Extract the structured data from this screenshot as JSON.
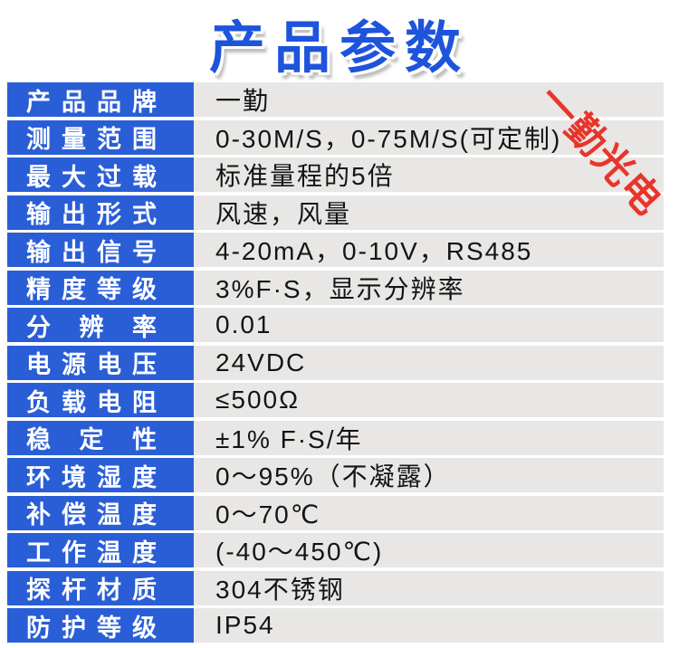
{
  "title": "产品参数",
  "watermark": "一勤光电",
  "colors": {
    "label_bg": "#2a5ed6",
    "value_bg": "#e8e7e5",
    "title_blue": "#1e54dc",
    "watermark_red": "#e8352b",
    "value_text": "#141414"
  },
  "table": {
    "rows": [
      {
        "label": "产品品牌",
        "value": "一勤"
      },
      {
        "label": "测量范围",
        "value": "0-30M/S，0-75M/S(可定制)"
      },
      {
        "label": "最大过载",
        "value": "标准量程的5倍"
      },
      {
        "label": "输出形式",
        "value": "风速，风量"
      },
      {
        "label": "输出信号",
        "value": "4-20mA，0-10V，RS485"
      },
      {
        "label": "精度等级",
        "value": "3%F·S，显示分辨率"
      },
      {
        "label": "分 辨 率",
        "value": "0.01"
      },
      {
        "label": "电源电压",
        "value": "24VDC"
      },
      {
        "label": "负载电阻",
        "value": "≤500Ω"
      },
      {
        "label": "稳 定 性",
        "value": "±1% F·S/年"
      },
      {
        "label": "环境湿度",
        "value": "0～95%（不凝露）"
      },
      {
        "label": "补偿温度",
        "value": "0～70℃"
      },
      {
        "label": "工作温度",
        "value": "(-40～450℃)"
      },
      {
        "label": "探杆材质",
        "value": "304不锈钢"
      },
      {
        "label": "防护等级",
        "value": "IP54"
      }
    ]
  }
}
